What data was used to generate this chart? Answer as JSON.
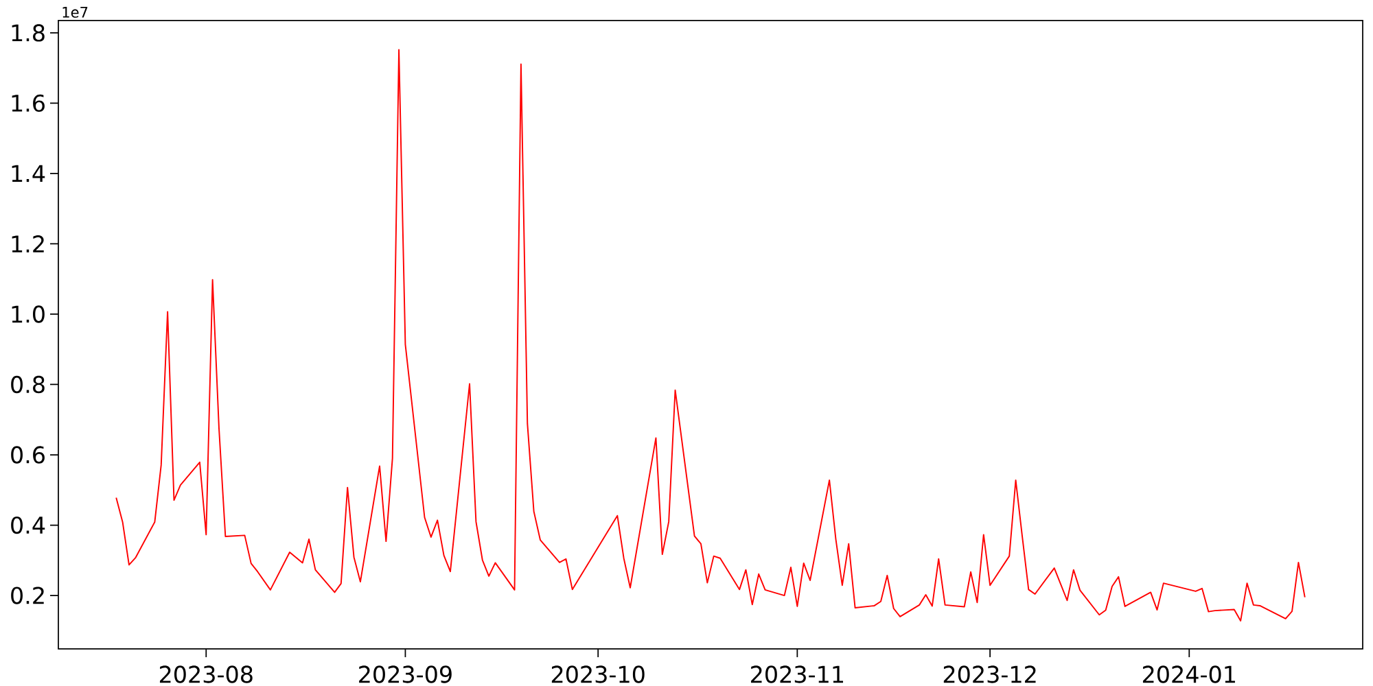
{
  "chart_data": {
    "type": "line",
    "x": [
      "2023-07-18",
      "2023-07-19",
      "2023-07-20",
      "2023-07-21",
      "2023-07-24",
      "2023-07-25",
      "2023-07-26",
      "2023-07-27",
      "2023-07-28",
      "2023-07-31",
      "2023-08-01",
      "2023-08-02",
      "2023-08-03",
      "2023-08-04",
      "2023-08-07",
      "2023-08-08",
      "2023-08-09",
      "2023-08-11",
      "2023-08-14",
      "2023-08-16",
      "2023-08-17",
      "2023-08-18",
      "2023-08-21",
      "2023-08-22",
      "2023-08-23",
      "2023-08-24",
      "2023-08-25",
      "2023-08-28",
      "2023-08-29",
      "2023-08-30",
      "2023-08-31",
      "2023-09-01",
      "2023-09-04",
      "2023-09-05",
      "2023-09-06",
      "2023-09-07",
      "2023-09-08",
      "2023-09-11",
      "2023-09-12",
      "2023-09-13",
      "2023-09-14",
      "2023-09-15",
      "2023-09-18",
      "2023-09-19",
      "2023-09-20",
      "2023-09-21",
      "2023-09-22",
      "2023-09-25",
      "2023-09-26",
      "2023-09-27",
      "2023-10-04",
      "2023-10-05",
      "2023-10-06",
      "2023-10-10",
      "2023-10-11",
      "2023-10-12",
      "2023-10-13",
      "2023-10-16",
      "2023-10-17",
      "2023-10-18",
      "2023-10-19",
      "2023-10-20",
      "2023-10-23",
      "2023-10-24",
      "2023-10-25",
      "2023-10-26",
      "2023-10-27",
      "2023-10-30",
      "2023-10-31",
      "2023-11-01",
      "2023-11-02",
      "2023-11-03",
      "2023-11-06",
      "2023-11-07",
      "2023-11-08",
      "2023-11-09",
      "2023-11-10",
      "2023-11-13",
      "2023-11-14",
      "2023-11-15",
      "2023-11-16",
      "2023-11-17",
      "2023-11-20",
      "2023-11-21",
      "2023-11-22",
      "2023-11-23",
      "2023-11-24",
      "2023-11-27",
      "2023-11-28",
      "2023-11-29",
      "2023-11-30",
      "2023-12-01",
      "2023-12-04",
      "2023-12-05",
      "2023-12-06",
      "2023-12-07",
      "2023-12-08",
      "2023-12-11",
      "2023-12-12",
      "2023-12-13",
      "2023-12-14",
      "2023-12-15",
      "2023-12-18",
      "2023-12-19",
      "2023-12-20",
      "2023-12-21",
      "2023-12-22",
      "2023-12-26",
      "2023-12-27",
      "2023-12-28",
      "2024-01-02",
      "2024-01-03",
      "2024-01-04",
      "2024-01-05",
      "2024-01-08",
      "2024-01-09",
      "2024-01-10",
      "2024-01-11",
      "2024-01-12",
      "2024-01-16",
      "2024-01-17",
      "2024-01-18",
      "2024-01-19"
    ],
    "values": [
      0.478,
      0.409,
      0.287,
      0.307,
      0.409,
      0.571,
      1.007,
      0.471,
      0.514,
      0.579,
      0.373,
      1.098,
      0.675,
      0.368,
      0.371,
      0.291,
      0.268,
      0.216,
      0.323,
      0.293,
      0.36,
      0.273,
      0.209,
      0.234,
      0.507,
      0.309,
      0.239,
      0.568,
      0.354,
      0.59,
      1.752,
      0.914,
      0.422,
      0.366,
      0.414,
      0.314,
      0.268,
      0.802,
      0.41,
      0.301,
      0.255,
      0.293,
      0.216,
      1.711,
      0.689,
      0.439,
      0.358,
      0.294,
      0.304,
      0.217,
      0.427,
      0.306,
      0.222,
      0.648,
      0.317,
      0.41,
      0.784,
      0.369,
      0.347,
      0.236,
      0.312,
      0.306,
      0.217,
      0.273,
      0.174,
      0.261,
      0.216,
      0.2,
      0.28,
      0.169,
      0.292,
      0.243,
      0.528,
      0.36,
      0.229,
      0.347,
      0.165,
      0.171,
      0.183,
      0.257,
      0.163,
      0.14,
      0.173,
      0.202,
      0.17,
      0.304,
      0.173,
      0.168,
      0.267,
      0.18,
      0.373,
      0.229,
      0.312,
      0.528,
      0.37,
      0.217,
      0.204,
      0.278,
      0.232,
      0.186,
      0.273,
      0.215,
      0.145,
      0.158,
      0.226,
      0.253,
      0.169,
      0.209,
      0.159,
      0.235,
      0.212,
      0.22,
      0.154,
      0.157,
      0.16,
      0.128,
      0.235,
      0.173,
      0.171,
      0.134,
      0.155,
      0.294,
      0.195
    ],
    "color": "#ff0000",
    "xlim": [
      "2023-07-09",
      "2024-01-28"
    ],
    "xticks": [
      {
        "value": "2023-08-01",
        "label": "2023-08"
      },
      {
        "value": "2023-09-01",
        "label": "2023-09"
      },
      {
        "value": "2023-10-01",
        "label": "2023-10"
      },
      {
        "value": "2023-11-01",
        "label": "2023-11"
      },
      {
        "value": "2023-12-01",
        "label": "2023-12"
      },
      {
        "value": "2024-01-01",
        "label": "2024-01"
      }
    ],
    "ylim": [
      0.048,
      1.835
    ],
    "yticks": [
      0.2,
      0.4,
      0.6,
      0.8,
      {
        "value": 1.0,
        "label": "1.0"
      },
      1.2,
      1.4,
      1.6,
      1.8
    ],
    "annotations": [
      "1e7"
    ],
    "marker": "none",
    "line_style": "solid"
  }
}
